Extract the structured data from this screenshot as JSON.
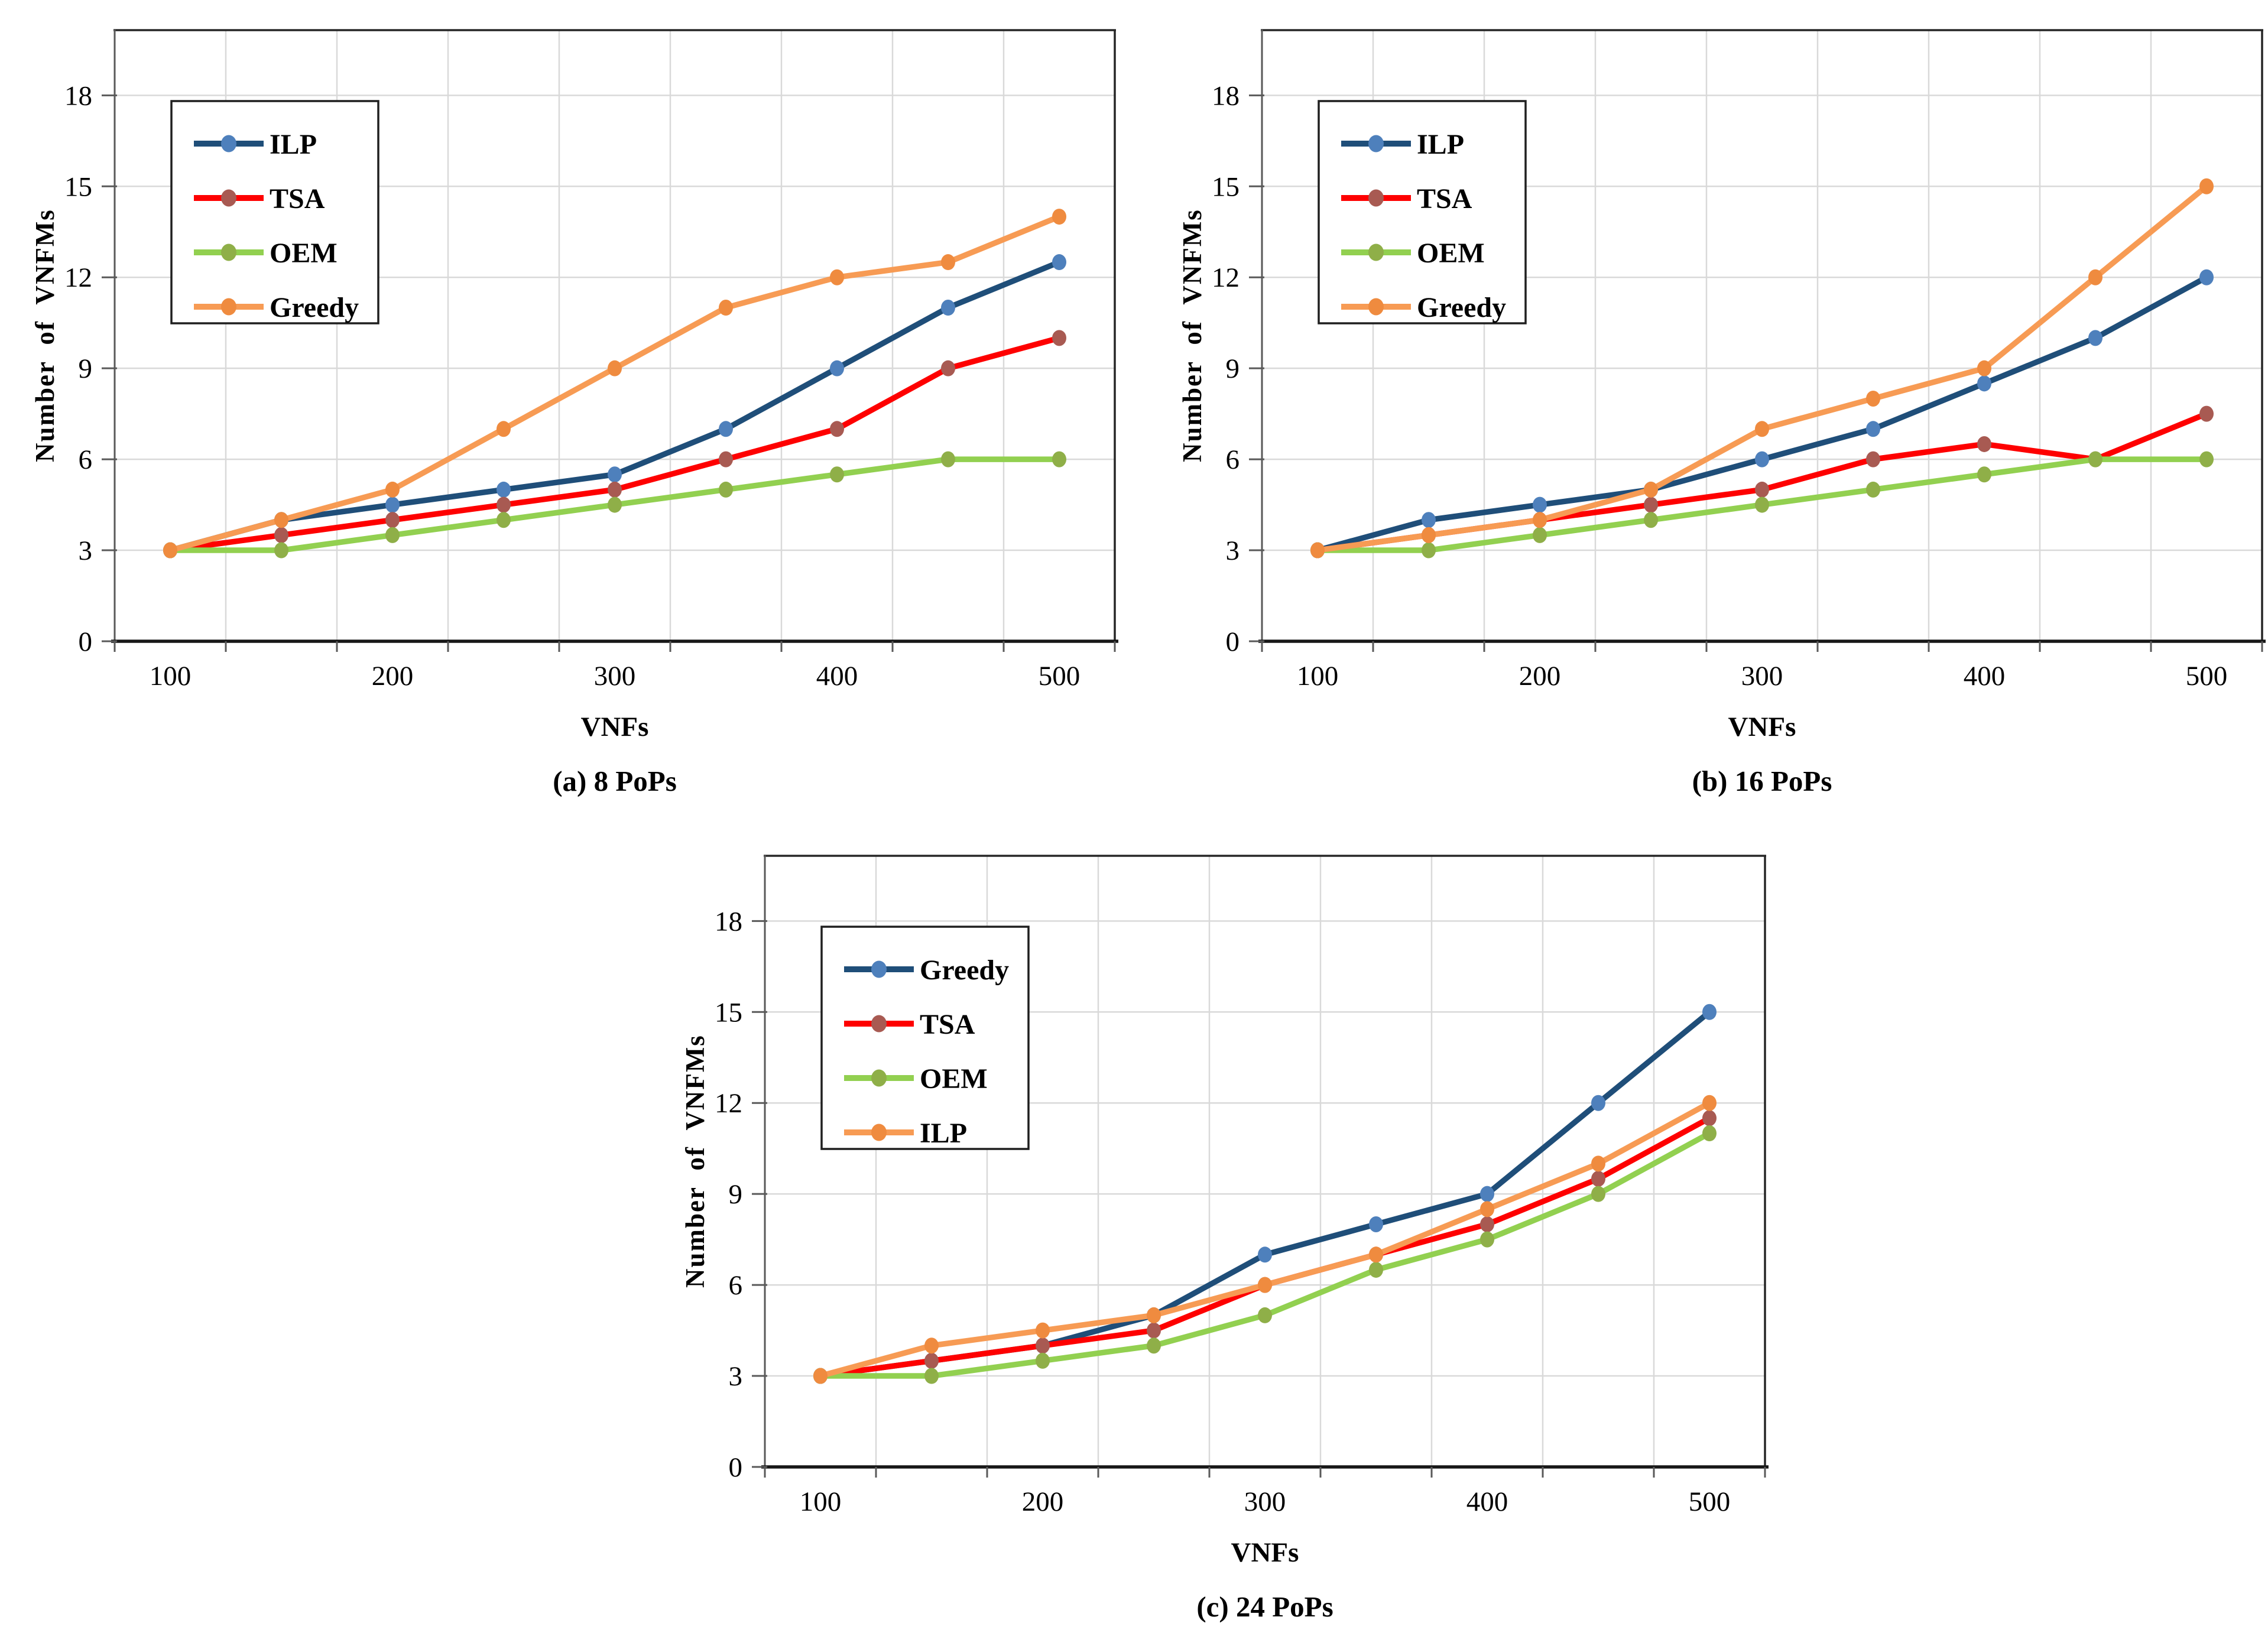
{
  "page": {
    "background": "#ffffff"
  },
  "palette": {
    "gridline": "#D9D9D9",
    "axis_left": "#595959",
    "axis_bottom": "#171717",
    "border": "#262626",
    "tick": "#595959",
    "legend_border": "#1F1F1F",
    "legend_fill": "#FFFFFF",
    "text": "#000000"
  },
  "chart_data": [
    {
      "id": "a",
      "type": "line",
      "caption": "(a) 8 PoPs",
      "xlabel": "VNFs",
      "ylabel": "Number of VNFMs",
      "x": [
        100,
        150,
        200,
        250,
        300,
        350,
        400,
        450,
        500
      ],
      "xtick_labels": [
        "100",
        "200",
        "300",
        "400",
        "500"
      ],
      "yticks": [
        0,
        3,
        6,
        9,
        12,
        15,
        18
      ],
      "ylim": [
        0,
        20.15
      ],
      "grid": true,
      "legend_position": "top-left",
      "series": [
        {
          "name": "ILP",
          "line": "#1F4E79",
          "marker": "#4E80BC",
          "values": [
            3,
            4,
            4.5,
            5,
            5.5,
            7,
            9,
            11,
            12.5
          ]
        },
        {
          "name": "TSA",
          "line": "#FE0000",
          "marker": "#A85A52",
          "values": [
            3,
            3.5,
            4,
            4.5,
            5,
            6,
            7,
            9,
            10
          ]
        },
        {
          "name": "OEM",
          "line": "#92D050",
          "marker": "#8FAF48",
          "values": [
            3,
            3,
            3.5,
            4,
            4.5,
            5,
            5.5,
            6,
            6
          ]
        },
        {
          "name": "Greedy",
          "line": "#F79B54",
          "marker": "#EF8B3F",
          "values": [
            3,
            4,
            5,
            7,
            9,
            11,
            12,
            12.5,
            14
          ]
        }
      ]
    },
    {
      "id": "b",
      "type": "line",
      "caption": "(b) 16 PoPs",
      "xlabel": "VNFs",
      "ylabel": "Number of VNFMs",
      "x": [
        100,
        150,
        200,
        250,
        300,
        350,
        400,
        450,
        500
      ],
      "xtick_labels": [
        "100",
        "200",
        "300",
        "400",
        "500"
      ],
      "yticks": [
        0,
        3,
        6,
        9,
        12,
        15,
        18
      ],
      "ylim": [
        0,
        20.15
      ],
      "grid": true,
      "legend_position": "top-left",
      "series": [
        {
          "name": "ILP",
          "line": "#1F4E79",
          "marker": "#4E80BC",
          "values": [
            3,
            4,
            4.5,
            5,
            6,
            7,
            8.5,
            10,
            12
          ]
        },
        {
          "name": "TSA",
          "line": "#FE0000",
          "marker": "#A85A52",
          "values": [
            3,
            3.5,
            4,
            4.5,
            5,
            6,
            6.5,
            6,
            7.5
          ]
        },
        {
          "name": "OEM",
          "line": "#92D050",
          "marker": "#8FAF48",
          "values": [
            3,
            3,
            3.5,
            4,
            4.5,
            5,
            5.5,
            6,
            6
          ]
        },
        {
          "name": "Greedy",
          "line": "#F79B54",
          "marker": "#EF8B3F",
          "values": [
            3,
            3.5,
            4,
            5,
            7,
            8,
            9,
            12,
            15
          ]
        }
      ]
    },
    {
      "id": "c",
      "type": "line",
      "caption": "(c) 24 PoPs",
      "xlabel": "VNFs",
      "ylabel": "Number of VNFMs",
      "x": [
        100,
        150,
        200,
        250,
        300,
        350,
        400,
        450,
        500
      ],
      "xtick_labels": [
        "100",
        "200",
        "300",
        "400",
        "500"
      ],
      "yticks": [
        0,
        3,
        6,
        9,
        12,
        15,
        18
      ],
      "ylim": [
        0,
        20.15
      ],
      "grid": true,
      "legend_position": "top-left",
      "series": [
        {
          "name": "Greedy",
          "line": "#1F4E79",
          "marker": "#4E80BC",
          "values": [
            3,
            3.5,
            4,
            5,
            7,
            8,
            9,
            12,
            15
          ]
        },
        {
          "name": "TSA",
          "line": "#FE0000",
          "marker": "#A85A52",
          "values": [
            3,
            3.5,
            4,
            4.5,
            6,
            7,
            8,
            9.5,
            11.5
          ]
        },
        {
          "name": "OEM",
          "line": "#92D050",
          "marker": "#8FAF48",
          "values": [
            3,
            3,
            3.5,
            4,
            5,
            6.5,
            7.5,
            9,
            11
          ]
        },
        {
          "name": "ILP",
          "line": "#F79B54",
          "marker": "#EF8B3F",
          "values": [
            3,
            4,
            4.5,
            5,
            6,
            7,
            8.5,
            10,
            12
          ]
        }
      ]
    }
  ]
}
